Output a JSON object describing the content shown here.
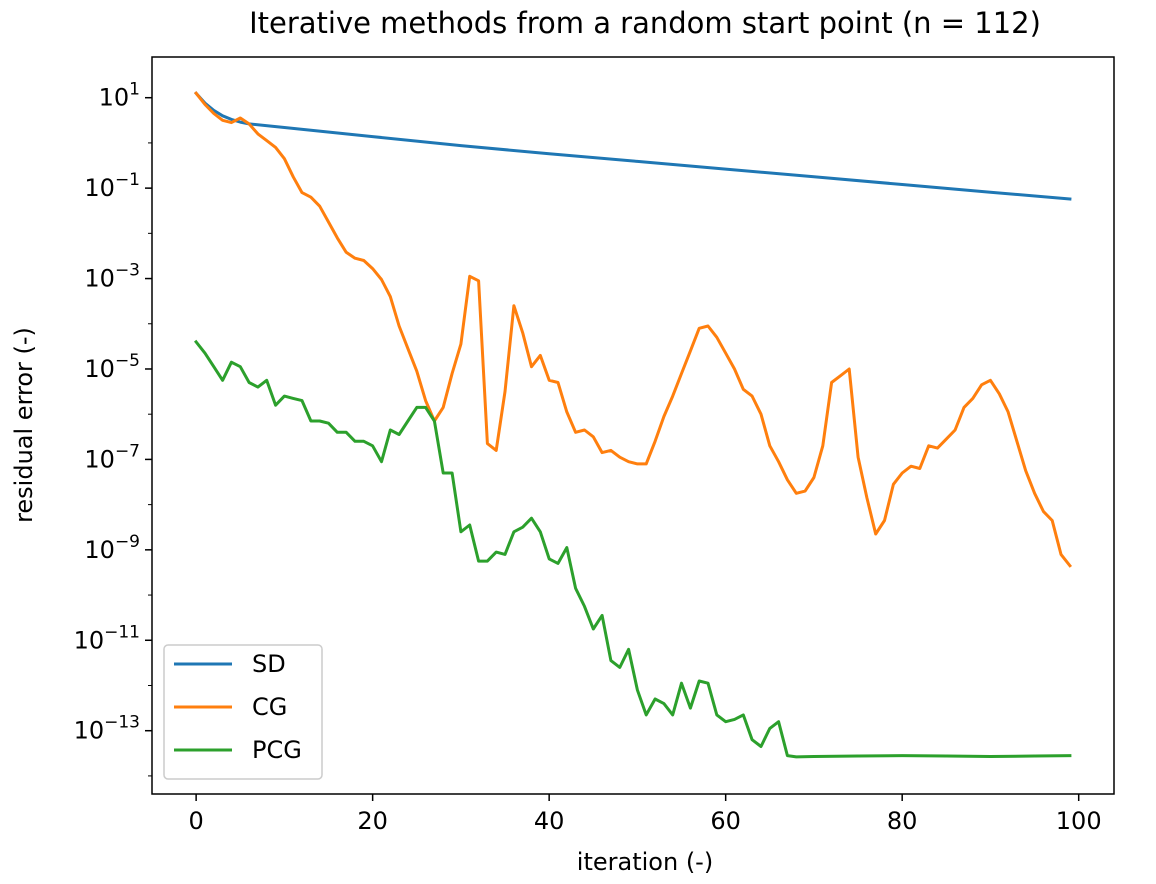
{
  "chart_data": {
    "type": "line",
    "title": "Iterative methods from a random start point (n = 112)",
    "xlabel": "iteration (-)",
    "ylabel": "residual error (-)",
    "yscale": "log",
    "xlim": [
      -5,
      104
    ],
    "ylim_exp": [
      -14.4,
      1.9
    ],
    "grid": false,
    "legend_position": "lower-left",
    "x_ticks": [
      0,
      20,
      40,
      60,
      80,
      100
    ],
    "y_ticks": [
      {
        "base": "10",
        "exp": "1",
        "value_exp": 1
      },
      {
        "base": "10",
        "exp": "−1",
        "value_exp": -1
      },
      {
        "base": "10",
        "exp": "−3",
        "value_exp": -3
      },
      {
        "base": "10",
        "exp": "−5",
        "value_exp": -5
      },
      {
        "base": "10",
        "exp": "−7",
        "value_exp": -7
      },
      {
        "base": "10",
        "exp": "−9",
        "value_exp": -9
      },
      {
        "base": "10",
        "exp": "−11",
        "value_exp": -11
      },
      {
        "base": "10",
        "exp": "−13",
        "value_exp": -13
      }
    ],
    "series": [
      {
        "name": "SD",
        "color": "#1f77b4",
        "x": [
          0,
          1,
          2,
          3,
          4,
          5,
          6,
          10,
          20,
          30,
          40,
          50,
          60,
          70,
          80,
          90,
          99
        ],
        "y_log10": [
          1.1,
          0.88,
          0.72,
          0.6,
          0.52,
          0.46,
          0.42,
          0.34,
          0.14,
          -0.06,
          -0.24,
          -0.41,
          -0.58,
          -0.75,
          -0.92,
          -1.09,
          -1.24
        ]
      },
      {
        "name": "CG",
        "color": "#ff7f0e",
        "x": [
          0,
          1,
          2,
          3,
          4,
          5,
          6,
          7,
          8,
          9,
          10,
          11,
          12,
          13,
          14,
          15,
          16,
          17,
          18,
          19,
          20,
          21,
          22,
          23,
          24,
          25,
          26,
          27,
          28,
          29,
          30,
          31,
          32,
          33,
          34,
          35,
          36,
          37,
          38,
          39,
          40,
          41,
          42,
          43,
          44,
          45,
          46,
          47,
          48,
          49,
          50,
          51,
          52,
          53,
          54,
          55,
          56,
          57,
          58,
          59,
          60,
          61,
          62,
          63,
          64,
          65,
          66,
          67,
          68,
          69,
          70,
          71,
          72,
          73,
          74,
          75,
          76,
          77,
          78,
          79,
          80,
          81,
          82,
          83,
          84,
          85,
          86,
          87,
          88,
          89,
          90,
          91,
          92,
          93,
          94,
          95,
          96,
          97,
          98,
          99
        ],
        "y_log10": [
          1.1,
          0.85,
          0.65,
          0.5,
          0.45,
          0.55,
          0.42,
          0.2,
          0.05,
          -0.1,
          -0.35,
          -0.75,
          -1.1,
          -1.2,
          -1.4,
          -1.75,
          -2.1,
          -2.42,
          -2.55,
          -2.6,
          -2.78,
          -3.02,
          -3.4,
          -4.05,
          -4.55,
          -5.05,
          -5.7,
          -6.15,
          -5.85,
          -5.1,
          -4.45,
          -2.95,
          -3.05,
          -6.65,
          -6.8,
          -5.5,
          -3.6,
          -4.2,
          -4.95,
          -4.7,
          -5.25,
          -5.3,
          -5.95,
          -6.4,
          -6.35,
          -6.5,
          -6.85,
          -6.8,
          -6.95,
          -7.05,
          -7.1,
          -7.1,
          -6.6,
          -6.05,
          -5.6,
          -5.1,
          -4.6,
          -4.1,
          -4.05,
          -4.3,
          -4.65,
          -5.0,
          -5.45,
          -5.6,
          -6.0,
          -6.7,
          -7.05,
          -7.45,
          -7.75,
          -7.7,
          -7.4,
          -6.7,
          -5.3,
          -5.15,
          -5.0,
          -6.95,
          -7.85,
          -8.65,
          -8.35,
          -7.55,
          -7.3,
          -7.15,
          -7.2,
          -6.7,
          -6.75,
          -6.55,
          -6.35,
          -5.85,
          -5.65,
          -5.35,
          -5.25,
          -5.55,
          -5.95,
          -6.6,
          -7.25,
          -7.75,
          -8.15,
          -8.35,
          -9.1,
          -9.35
        ]
      },
      {
        "name": "PCG",
        "color": "#2ca02c",
        "x": [
          0,
          1,
          2,
          3,
          4,
          5,
          6,
          7,
          8,
          9,
          10,
          11,
          12,
          13,
          14,
          15,
          16,
          17,
          18,
          19,
          20,
          21,
          22,
          23,
          24,
          25,
          26,
          27,
          28,
          29,
          30,
          31,
          32,
          33,
          34,
          35,
          36,
          37,
          38,
          39,
          40,
          41,
          42,
          43,
          44,
          45,
          46,
          47,
          48,
          49,
          50,
          51,
          52,
          53,
          54,
          55,
          56,
          57,
          58,
          59,
          60,
          61,
          62,
          63,
          64,
          65,
          66,
          67,
          68,
          70,
          75,
          80,
          85,
          90,
          95,
          99
        ],
        "y_log10": [
          -4.4,
          -4.65,
          -4.95,
          -5.25,
          -4.85,
          -4.95,
          -5.3,
          -5.4,
          -5.25,
          -5.8,
          -5.6,
          -5.65,
          -5.7,
          -6.15,
          -6.15,
          -6.2,
          -6.4,
          -6.4,
          -6.6,
          -6.6,
          -6.7,
          -7.05,
          -6.35,
          -6.45,
          -6.15,
          -5.85,
          -5.85,
          -6.15,
          -7.3,
          -7.3,
          -8.6,
          -8.45,
          -9.25,
          -9.25,
          -9.05,
          -9.1,
          -8.6,
          -8.5,
          -8.3,
          -8.6,
          -9.2,
          -9.3,
          -8.95,
          -9.85,
          -10.25,
          -10.75,
          -10.45,
          -11.45,
          -11.6,
          -11.2,
          -12.1,
          -12.65,
          -12.3,
          -12.4,
          -12.65,
          -11.95,
          -12.5,
          -11.9,
          -11.95,
          -12.65,
          -12.8,
          -12.75,
          -12.65,
          -13.2,
          -13.35,
          -12.95,
          -12.8,
          -13.55,
          -13.58,
          -13.57,
          -13.56,
          -13.55,
          -13.56,
          -13.57,
          -13.56,
          -13.55
        ]
      }
    ]
  }
}
